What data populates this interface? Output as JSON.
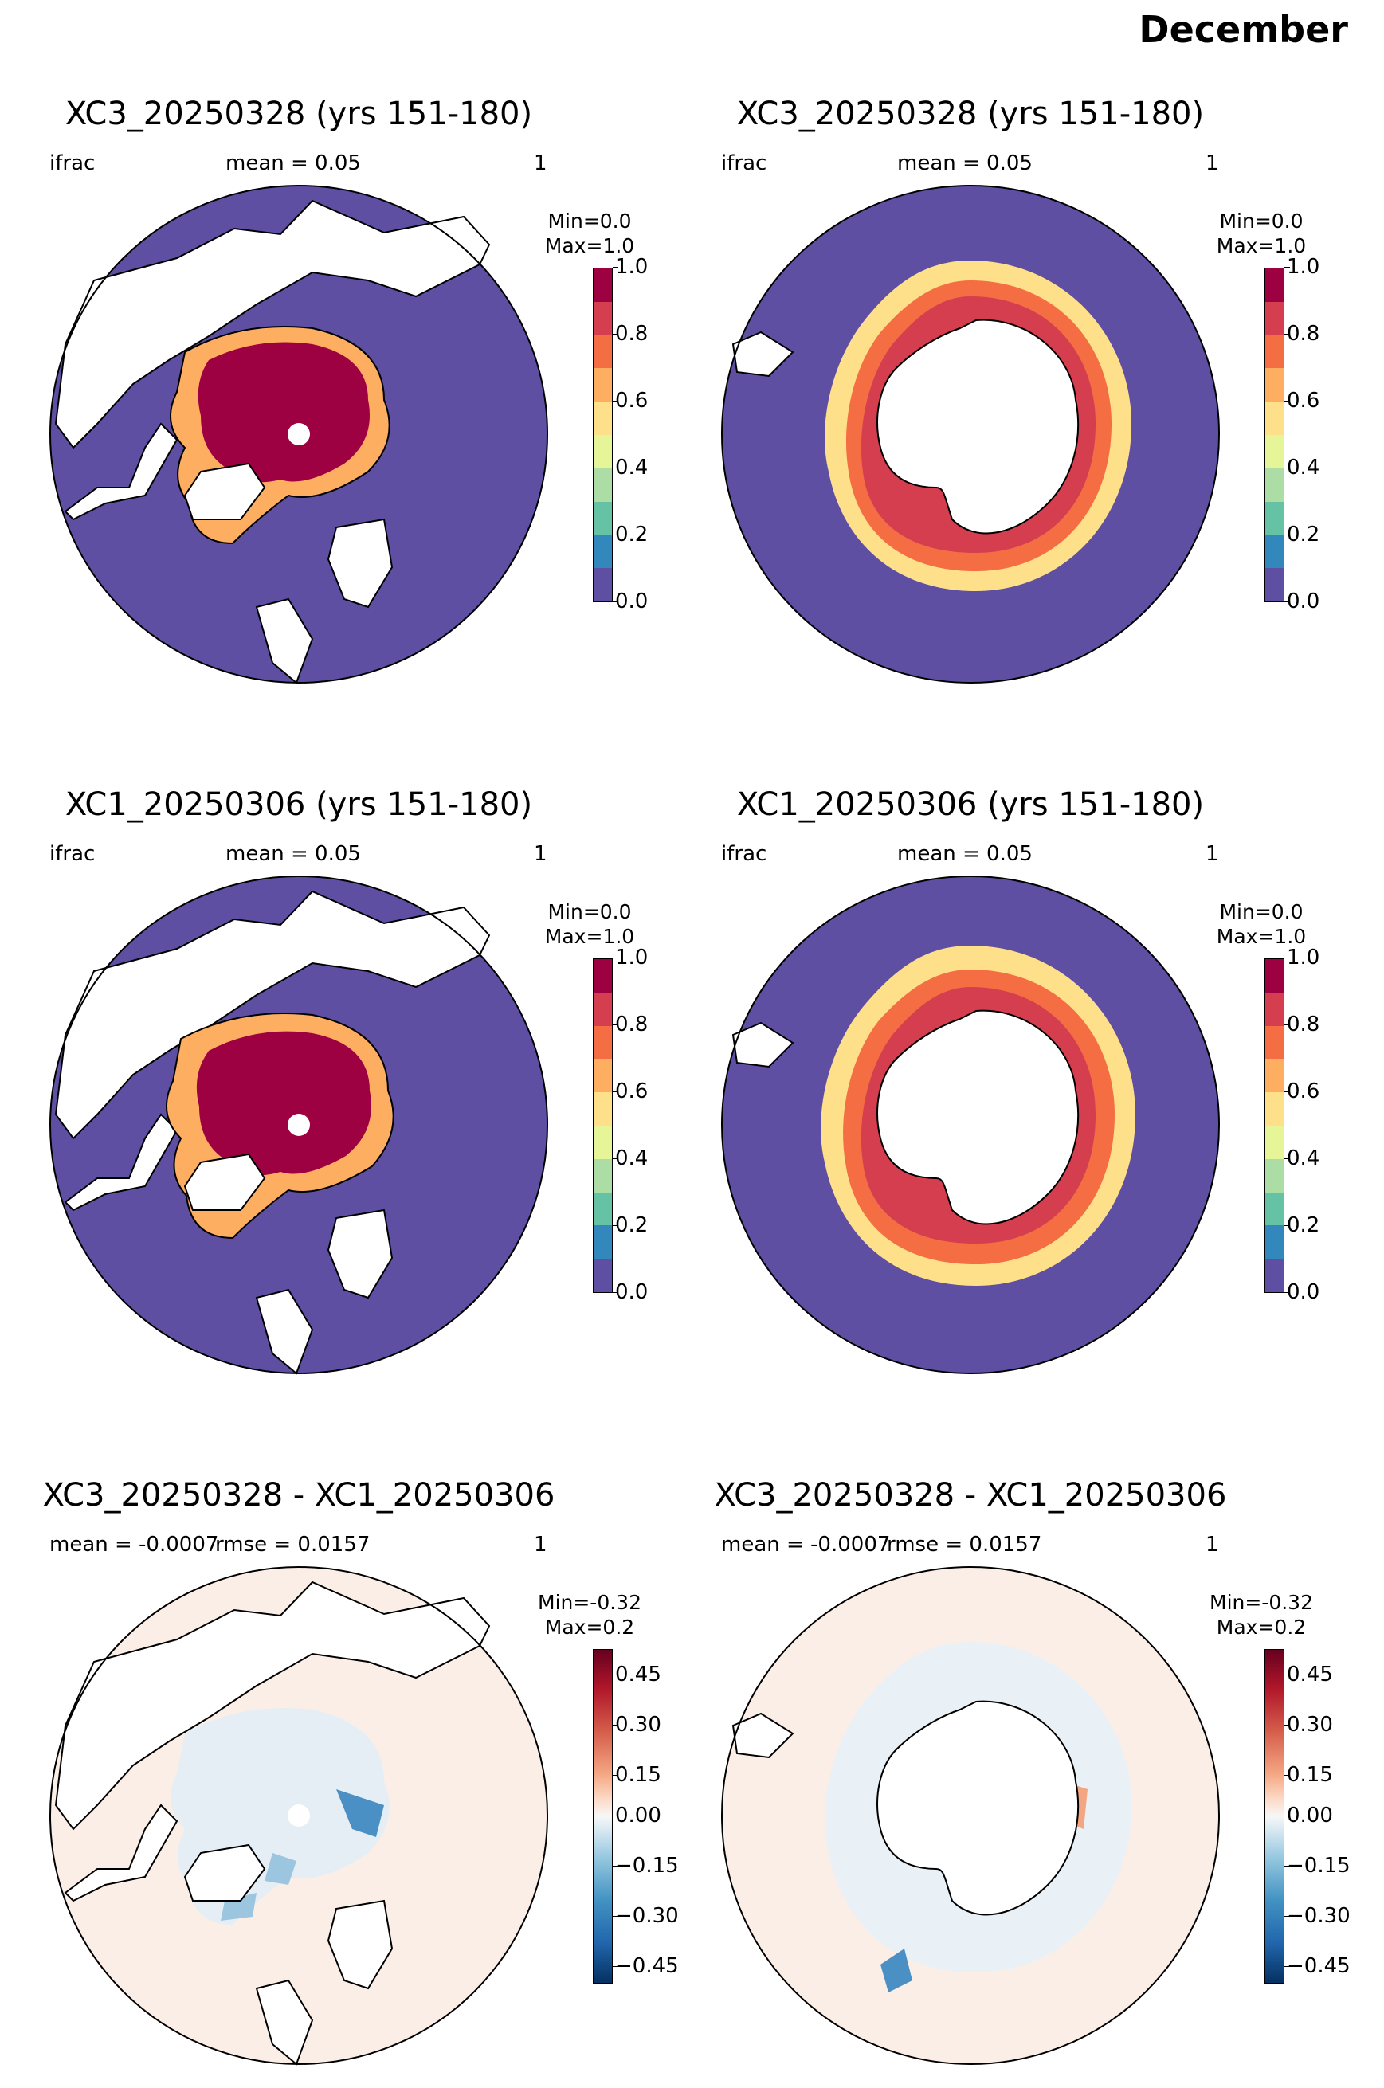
{
  "suptitle": "December",
  "colors": {
    "ocean_fill": "#5e4fa2",
    "ice_high": "#9e0142",
    "diff_background": "#fbeee6",
    "land": "#ffffff",
    "coast": "#000000"
  },
  "colorbars": {
    "ifrac": {
      "colormap": "Spectral_r (discrete)",
      "ticks": [
        "0.0",
        "0.2",
        "0.4",
        "0.6",
        "0.8",
        "1.0"
      ],
      "range": [
        0.0,
        1.0
      ]
    },
    "diff": {
      "colormap": "RdBu_r (discrete)",
      "ticks": [
        "0.45",
        "0.30",
        "0.15",
        "0.00",
        "−0.15",
        "−0.30",
        "−0.45"
      ],
      "range": [
        -0.5,
        0.5
      ]
    }
  },
  "panels": [
    {
      "title": "XC3_20250328 (yrs 151-180)",
      "left_label": "ifrac",
      "center_label": "mean = 0.05",
      "right_label": "1",
      "min_label": "Min=0.0",
      "max_label": "Max=1.0",
      "pole": "north",
      "colorbar": "ifrac"
    },
    {
      "title": "XC3_20250328 (yrs 151-180)",
      "left_label": "ifrac",
      "center_label": "mean = 0.05",
      "right_label": "1",
      "min_label": "Min=0.0",
      "max_label": "Max=1.0",
      "pole": "south",
      "colorbar": "ifrac"
    },
    {
      "title": "XC1_20250306 (yrs 151-180)",
      "left_label": "ifrac",
      "center_label": "mean = 0.05",
      "right_label": "1",
      "min_label": "Min=0.0",
      "max_label": "Max=1.0",
      "pole": "north",
      "colorbar": "ifrac"
    },
    {
      "title": "XC1_20250306 (yrs 151-180)",
      "left_label": "ifrac",
      "center_label": "mean = 0.05",
      "right_label": "1",
      "min_label": "Min=0.0",
      "max_label": "Max=1.0",
      "pole": "south",
      "colorbar": "ifrac"
    },
    {
      "title": "XC3_20250328 - XC1_20250306",
      "left_label": "mean = -0.0007",
      "center_label": "rmse = 0.0157",
      "right_label": "1",
      "min_label": "Min=-0.32",
      "max_label": "Max=0.2",
      "pole": "north",
      "colorbar": "diff"
    },
    {
      "title": "XC3_20250328 - XC1_20250306",
      "left_label": "mean = -0.0007",
      "center_label": "rmse = 0.0157",
      "right_label": "1",
      "min_label": "Min=-0.32",
      "max_label": "Max=0.2",
      "pole": "south",
      "colorbar": "diff"
    }
  ]
}
